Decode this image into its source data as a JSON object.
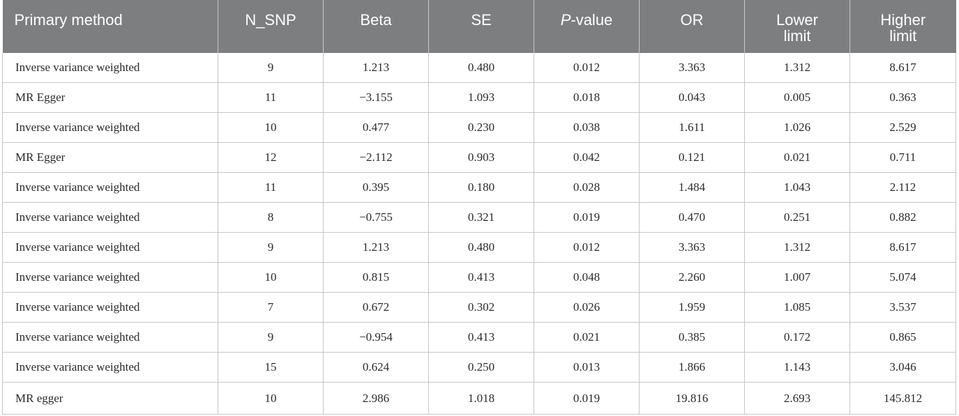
{
  "table": {
    "headers": {
      "method": "Primary method",
      "nsnp": "N_SNP",
      "beta": "Beta",
      "se": "SE",
      "p_italic": "P",
      "p_rest": "-value",
      "or": "OR",
      "lower_1": "Lower",
      "lower_2": "limit",
      "higher_1": "Higher",
      "higher_2": "limit"
    },
    "rows": [
      {
        "method": "Inverse variance weighted",
        "nsnp": "9",
        "beta": "1.213",
        "se": "0.480",
        "p": "0.012",
        "or": "3.363",
        "lower": "1.312",
        "higher": "8.617"
      },
      {
        "method": "MR Egger",
        "nsnp": "11",
        "beta": "−3.155",
        "se": "1.093",
        "p": "0.018",
        "or": "0.043",
        "lower": "0.005",
        "higher": "0.363"
      },
      {
        "method": "Inverse variance weighted",
        "nsnp": "10",
        "beta": "0.477",
        "se": "0.230",
        "p": "0.038",
        "or": "1.611",
        "lower": "1.026",
        "higher": "2.529"
      },
      {
        "method": "MR Egger",
        "nsnp": "12",
        "beta": "−2.112",
        "se": "0.903",
        "p": "0.042",
        "or": "0.121",
        "lower": "0.021",
        "higher": "0.711"
      },
      {
        "method": "Inverse variance weighted",
        "nsnp": "11",
        "beta": "0.395",
        "se": "0.180",
        "p": "0.028",
        "or": "1.484",
        "lower": "1.043",
        "higher": "2.112"
      },
      {
        "method": "Inverse variance weighted",
        "nsnp": "8",
        "beta": "−0.755",
        "se": "0.321",
        "p": "0.019",
        "or": "0.470",
        "lower": "0.251",
        "higher": "0.882"
      },
      {
        "method": "Inverse variance weighted",
        "nsnp": "9",
        "beta": "1.213",
        "se": "0.480",
        "p": "0.012",
        "or": "3.363",
        "lower": "1.312",
        "higher": "8.617"
      },
      {
        "method": "Inverse variance weighted",
        "nsnp": "10",
        "beta": "0.815",
        "se": "0.413",
        "p": "0.048",
        "or": "2.260",
        "lower": "1.007",
        "higher": "5.074"
      },
      {
        "method": "Inverse variance weighted",
        "nsnp": "7",
        "beta": "0.672",
        "se": "0.302",
        "p": "0.026",
        "or": "1.959",
        "lower": "1.085",
        "higher": "3.537"
      },
      {
        "method": "Inverse variance weighted",
        "nsnp": "9",
        "beta": "−0.954",
        "se": "0.413",
        "p": "0.021",
        "or": "0.385",
        "lower": "0.172",
        "higher": "0.865"
      },
      {
        "method": "Inverse variance weighted",
        "nsnp": "15",
        "beta": "0.624",
        "se": "0.250",
        "p": "0.013",
        "or": "1.866",
        "lower": "1.143",
        "higher": "3.046"
      },
      {
        "method": "MR egger",
        "nsnp": "10",
        "beta": "2.986",
        "se": "1.018",
        "p": "0.019",
        "or": "19.816",
        "lower": "2.693",
        "higher": "145.812"
      }
    ]
  },
  "colors": {
    "header_bg": "#7d7e80",
    "header_text": "#ffffff",
    "grid": "#c6c6c6",
    "cell_text": "#2a2a2a"
  }
}
